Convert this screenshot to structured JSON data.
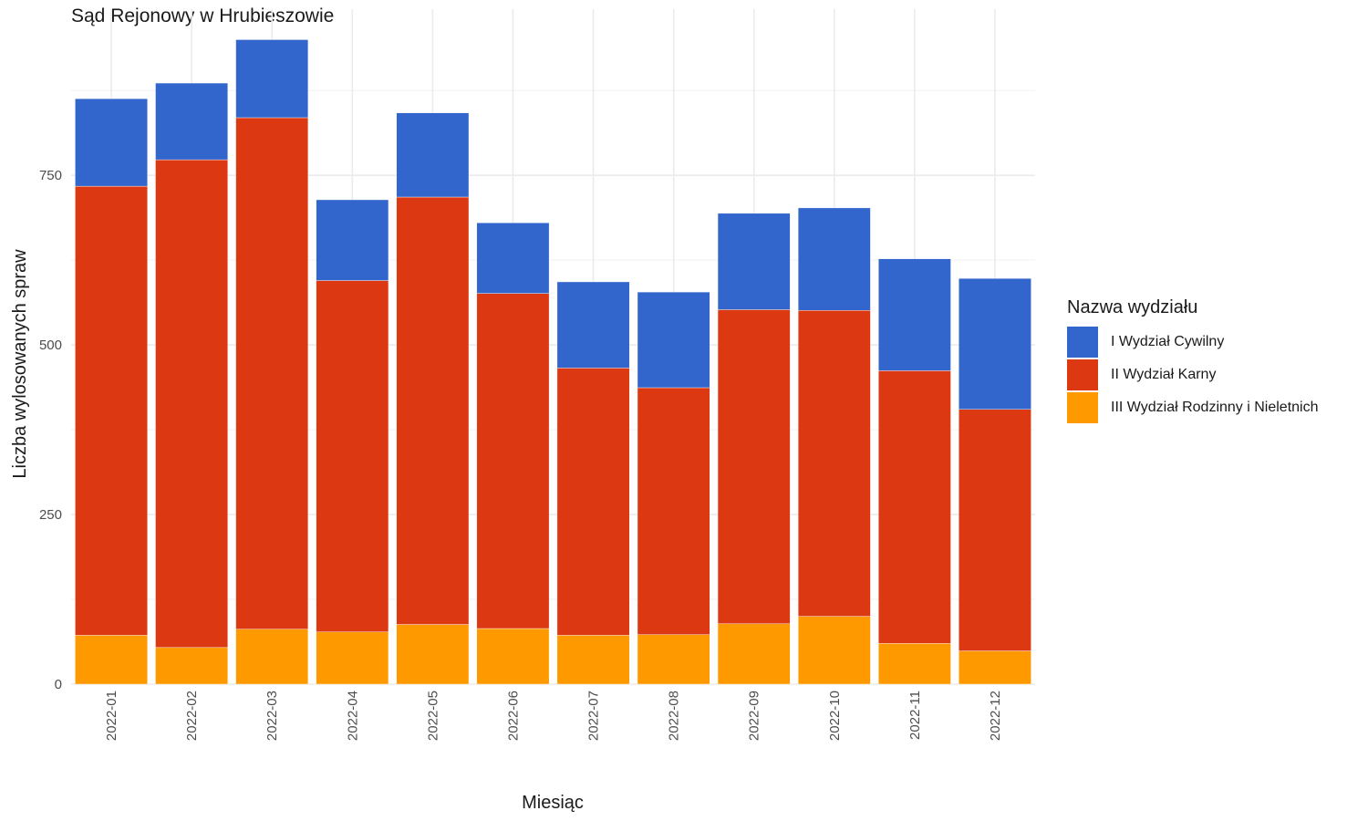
{
  "chart_data": {
    "type": "bar",
    "stacked": true,
    "title": "Sąd Rejonowy w Hrubieszowie",
    "xlabel": "Miesiąc",
    "ylabel": "Liczba wylosowanych spraw",
    "categories": [
      "2022-01",
      "2022-02",
      "2022-03",
      "2022-04",
      "2022-05",
      "2022-06",
      "2022-07",
      "2022-08",
      "2022-09",
      "2022-10",
      "2022-11",
      "2022-12"
    ],
    "yticks": [
      0,
      250,
      500,
      750
    ],
    "ylim": [
      0,
      995
    ],
    "grid": true,
    "legend_position": "right",
    "legend_title": "Nazwa wydziału",
    "series": [
      {
        "name": "III Wydział Rodzinny i Nieletnich",
        "color": "#FF9900",
        "values": [
          72,
          54,
          81,
          77,
          88,
          82,
          72,
          73,
          89,
          100,
          60,
          49
        ]
      },
      {
        "name": "II Wydział Karny",
        "color": "#DC3912",
        "values": [
          662,
          719,
          754,
          518,
          630,
          494,
          394,
          364,
          463,
          451,
          402,
          356
        ]
      },
      {
        "name": "I Wydział Cywilny",
        "color": "#3366CC",
        "values": [
          129,
          113,
          115,
          119,
          124,
          104,
          127,
          141,
          142,
          151,
          165,
          193
        ]
      }
    ],
    "legend_order": [
      "I Wydział Cywilny",
      "II Wydział Karny",
      "III Wydział Rodzinny i Nieletnich"
    ]
  }
}
